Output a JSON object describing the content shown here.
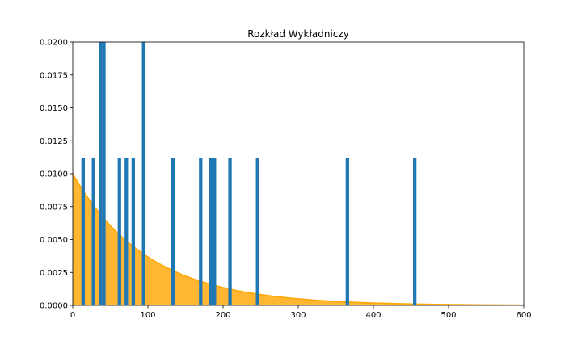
{
  "chart_data": {
    "type": "bar",
    "title": "Rozkład Wykładniczy",
    "xlabel": "",
    "ylabel": "",
    "xlim": [
      0,
      600
    ],
    "ylim": [
      0,
      0.02
    ],
    "xticks": [
      "0",
      "100",
      "200",
      "300",
      "400",
      "500",
      "600"
    ],
    "yticks": [
      "0.0000",
      "0.0025",
      "0.0050",
      "0.0075",
      "0.0100",
      "0.0125",
      "0.0150",
      "0.0175",
      "0.0200"
    ],
    "grid": false,
    "legend": "none",
    "histogram": {
      "color": "#1f77b4",
      "bin_width": 4.6,
      "bins": [
        {
          "x": 13.8,
          "value": 0.0112
        },
        {
          "x": 27.6,
          "value": 0.0112
        },
        {
          "x": 36.8,
          "value": 0.0224
        },
        {
          "x": 41.4,
          "value": 0.0224
        },
        {
          "x": 62.1,
          "value": 0.0112
        },
        {
          "x": 71.3,
          "value": 0.0112
        },
        {
          "x": 80.5,
          "value": 0.0112
        },
        {
          "x": 94.3,
          "value": 0.0224
        },
        {
          "x": 133.4,
          "value": 0.0112
        },
        {
          "x": 170.2,
          "value": 0.0112
        },
        {
          "x": 183.9,
          "value": 0.0112
        },
        {
          "x": 188.5,
          "value": 0.0112
        },
        {
          "x": 209.2,
          "value": 0.0112
        },
        {
          "x": 245.9,
          "value": 0.0112
        },
        {
          "x": 365.4,
          "value": 0.0112
        },
        {
          "x": 455.0,
          "value": 0.0112
        }
      ]
    },
    "density": {
      "type": "area",
      "color": "#ffa500",
      "rate": 0.01,
      "x_start": 0,
      "x_end": 600
    }
  }
}
